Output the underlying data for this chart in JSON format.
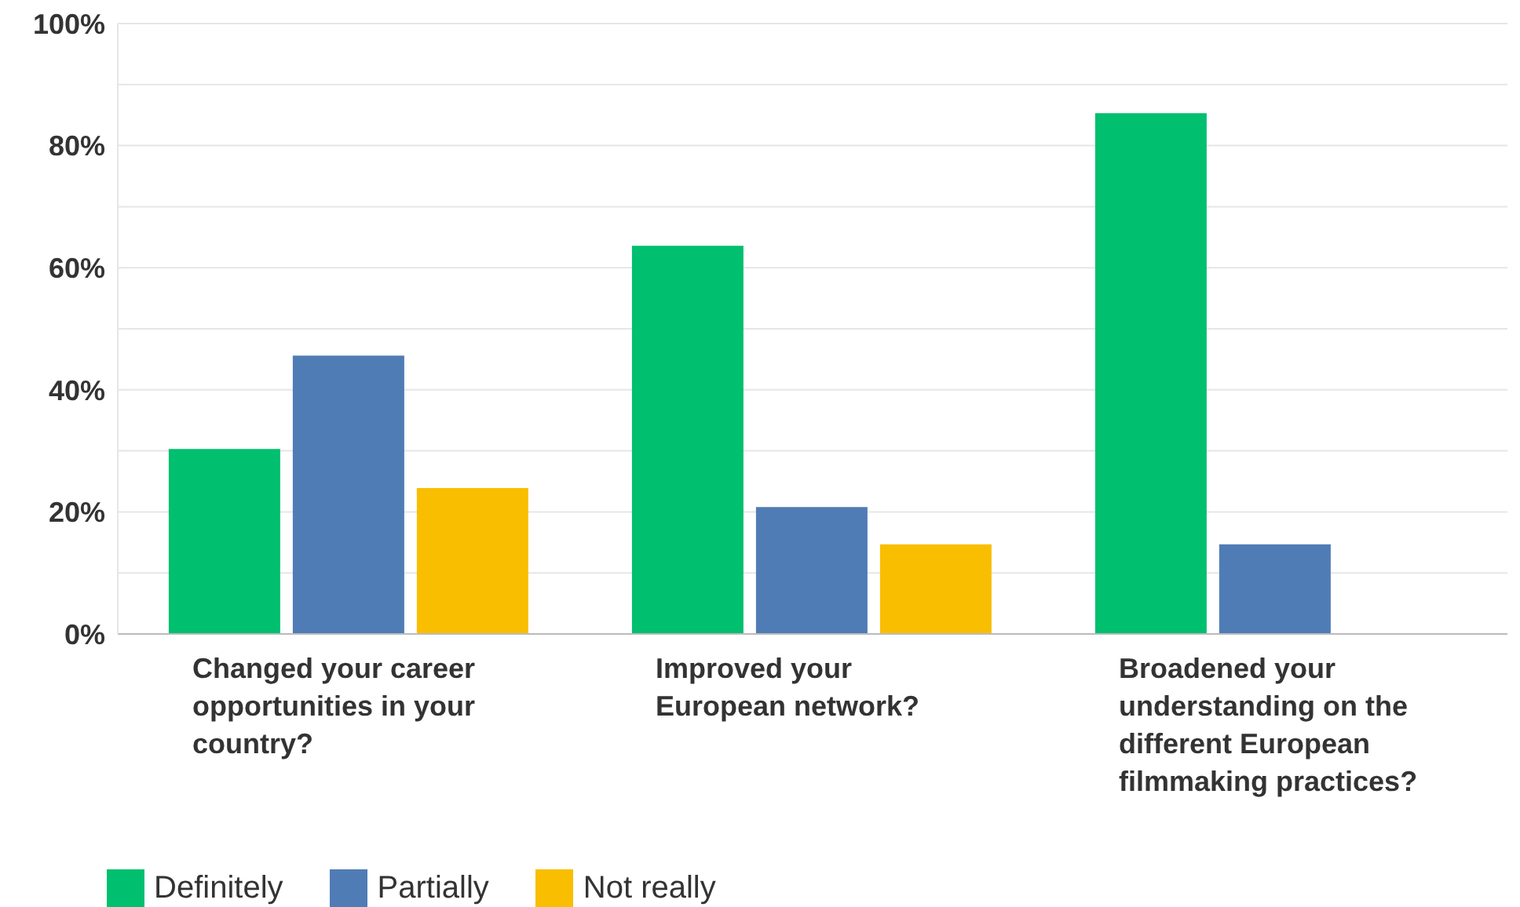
{
  "chart_data": {
    "type": "bar",
    "categories": [
      "Changed your career opportunities in your country?",
      "Improved your European network?",
      "Broadened your understanding on the different European filmmaking practices?"
    ],
    "series": [
      {
        "name": "Definitely",
        "color": "#00bf6f",
        "values": [
          30.3,
          63.6,
          85.3
        ]
      },
      {
        "name": "Partially",
        "color": "#507cb6",
        "values": [
          45.6,
          20.8,
          14.7
        ]
      },
      {
        "name": "Not really",
        "color": "#f9be00",
        "values": [
          23.9,
          14.7,
          0
        ]
      }
    ],
    "ylim": [
      0,
      100
    ],
    "yticks": [
      {
        "value": 0,
        "label": "0%"
      },
      {
        "value": 10,
        "label": null
      },
      {
        "value": 20,
        "label": "20%"
      },
      {
        "value": 30,
        "label": null
      },
      {
        "value": 40,
        "label": "40%"
      },
      {
        "value": 50,
        "label": null
      },
      {
        "value": 60,
        "label": "60%"
      },
      {
        "value": 70,
        "label": null
      },
      {
        "value": 80,
        "label": "80%"
      },
      {
        "value": 90,
        "label": null
      },
      {
        "value": 100,
        "label": "100%"
      }
    ],
    "grid": "y",
    "legend": "bottom left"
  }
}
